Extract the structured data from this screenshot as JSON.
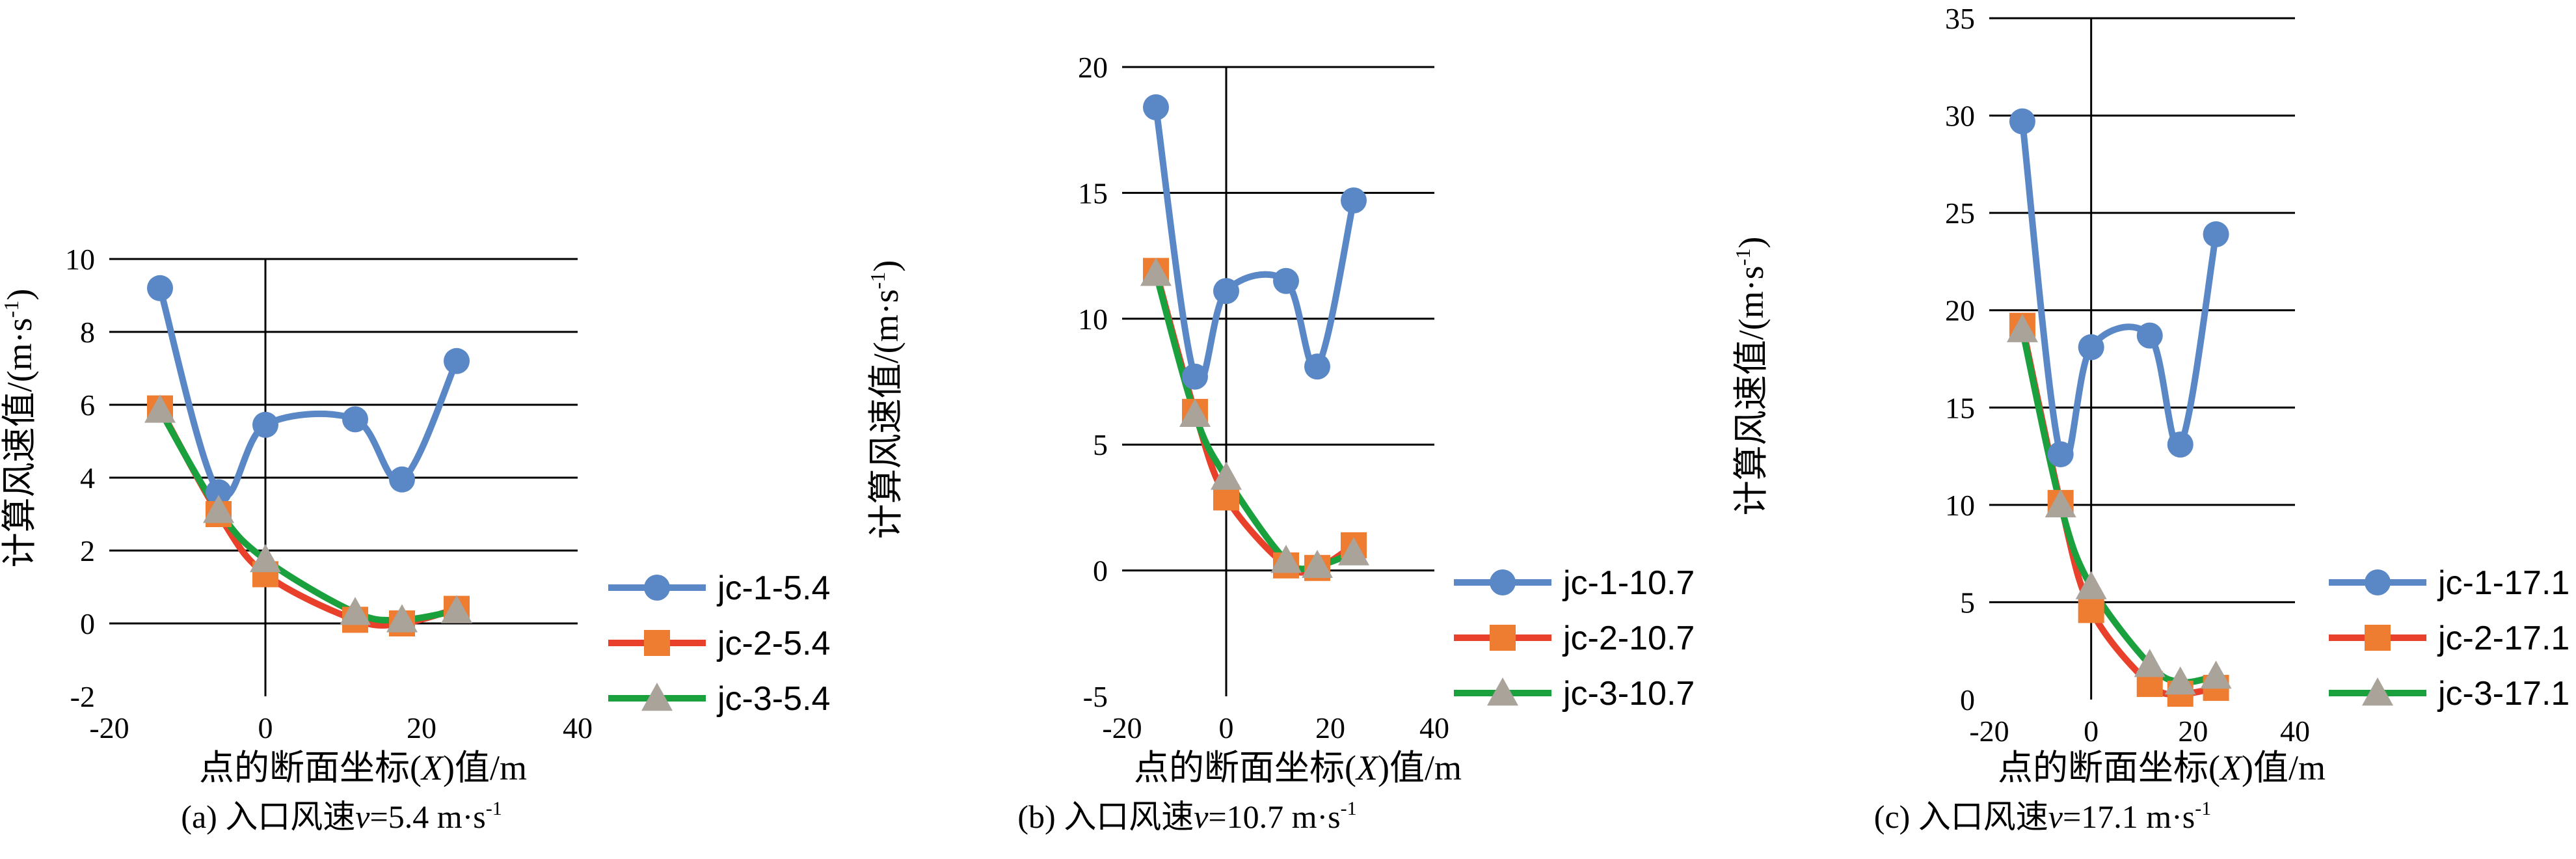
{
  "colors": {
    "series1": "#5a87c5",
    "series2": "#e8402b",
    "series2_marker": "#ee7d31",
    "series3": "#1aa03c",
    "series3_marker": "#a9a39a",
    "grid": "#000000"
  },
  "chart_data": [
    {
      "type": "line",
      "caption_prefix": "(a) 入口风速",
      "caption_var": "v",
      "caption_value": "=5.4 m·s",
      "caption_sup": "-1",
      "xlabel_prefix": "点的断面坐标(",
      "xlabel_var": "X",
      "xlabel_suffix": ")值/m",
      "ylabel": "计算风速值/(m·s",
      "ylabel_sup": "-1",
      "ylabel_close": ")",
      "xlim": [
        -20,
        40
      ],
      "ylim": [
        -2,
        10
      ],
      "xticks": [
        -20,
        0,
        20,
        40
      ],
      "yticks": [
        -2,
        0,
        2,
        4,
        6,
        8,
        10
      ],
      "x": [
        -13.5,
        -6,
        0,
        11.5,
        17.5,
        24.5
      ],
      "series": [
        {
          "name": "jc-1-5.4",
          "values": [
            9.2,
            3.6,
            5.45,
            5.6,
            3.95,
            7.2
          ]
        },
        {
          "name": "jc-2-5.4",
          "values": [
            5.9,
            3.0,
            1.35,
            0.1,
            0.0,
            0.4
          ]
        },
        {
          "name": "jc-3-5.4",
          "values": [
            5.85,
            3.1,
            1.75,
            0.3,
            0.1,
            0.35
          ]
        }
      ]
    },
    {
      "type": "line",
      "caption_prefix": "(b) 入口风速",
      "caption_var": "v",
      "caption_value": "=10.7 m·s",
      "caption_sup": "-1",
      "xlabel_prefix": "点的断面坐标(",
      "xlabel_var": "X",
      "xlabel_suffix": ")值/m",
      "ylabel": "计算风速值/(m·s",
      "ylabel_sup": "-1",
      "ylabel_close": ")",
      "xlim": [
        -20,
        40
      ],
      "ylim": [
        -5,
        20
      ],
      "xticks": [
        -20,
        0,
        20,
        40
      ],
      "yticks": [
        -5,
        0,
        5,
        10,
        15,
        20
      ],
      "x": [
        -13.5,
        -6,
        0,
        11.5,
        17.5,
        24.5
      ],
      "series": [
        {
          "name": "jc-1-10.7",
          "values": [
            18.4,
            7.7,
            11.1,
            11.5,
            8.1,
            14.7
          ]
        },
        {
          "name": "jc-2-10.7",
          "values": [
            11.9,
            6.3,
            2.9,
            0.2,
            0.1,
            1.0
          ]
        },
        {
          "name": "jc-3-10.7",
          "values": [
            11.8,
            6.2,
            3.7,
            0.4,
            0.2,
            0.7
          ]
        }
      ]
    },
    {
      "type": "line",
      "caption_prefix": "(c) 入口风速",
      "caption_var": "v",
      "caption_value": "=17.1 m·s",
      "caption_sup": "-1",
      "xlabel_prefix": "点的断面坐标(",
      "xlabel_var": "X",
      "xlabel_suffix": ")值/m",
      "ylabel": "计算风速值/(m·s",
      "ylabel_sup": "-1",
      "ylabel_close": ")",
      "xlim": [
        -20,
        40
      ],
      "ylim": [
        0,
        35
      ],
      "xticks": [
        -20,
        0,
        20,
        40
      ],
      "yticks": [
        0,
        5,
        10,
        15,
        20,
        25,
        30,
        35
      ],
      "x": [
        -13.5,
        -6,
        0,
        11.5,
        17.5,
        24.5
      ],
      "series": [
        {
          "name": "jc-1-17.1",
          "values": [
            29.7,
            12.6,
            18.1,
            18.7,
            13.1,
            23.9
          ]
        },
        {
          "name": "jc-2-17.1",
          "values": [
            19.2,
            10.1,
            4.6,
            0.8,
            0.3,
            0.6
          ]
        },
        {
          "name": "jc-3-17.1",
          "values": [
            19.0,
            10.0,
            5.8,
            1.8,
            0.9,
            1.2
          ]
        }
      ]
    }
  ]
}
